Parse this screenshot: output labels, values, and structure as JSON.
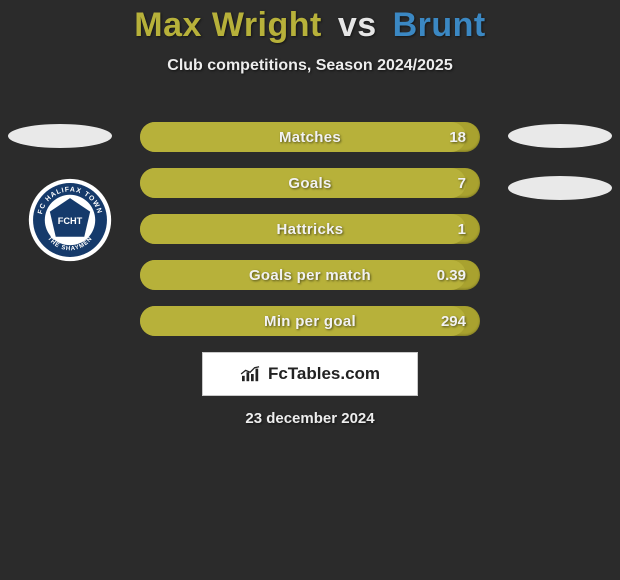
{
  "colors": {
    "page_bg": "#2b2b2b",
    "title_p1": "#b7b13a",
    "title_vs": "#e6e6e6",
    "title_p2": "#3b88c3",
    "subtitle": "#ededed",
    "ellipse": "#e9e9e9",
    "row_bg": "#a9a22f",
    "row_fill": "#b7b13a",
    "row_text": "#f2f2f2",
    "brand_bg": "#ffffff",
    "brand_text": "#222222",
    "date_text": "#ededed",
    "badge_outer": "#ffffff",
    "badge_ring": "#153a6b",
    "badge_inner": "#ffffff",
    "badge_center": "#153a6b"
  },
  "title": {
    "p1": "Max Wright",
    "vs": "vs",
    "p2": "Brunt"
  },
  "subtitle": "Club competitions, Season 2024/2025",
  "stats": {
    "rows": [
      {
        "label": "Matches",
        "right_value": "18",
        "fill_pct": 96
      },
      {
        "label": "Goals",
        "right_value": "7",
        "fill_pct": 96
      },
      {
        "label": "Hattricks",
        "right_value": "1",
        "fill_pct": 96
      },
      {
        "label": "Goals per match",
        "right_value": "0.39",
        "fill_pct": 96
      },
      {
        "label": "Min per goal",
        "right_value": "294",
        "fill_pct": 96
      }
    ]
  },
  "badge": {
    "top_text": "FC HALIFAX TOWN",
    "bottom_text": "THE SHAYMEN",
    "mono": "FCHT"
  },
  "brand": {
    "text": "FcTables.com"
  },
  "date": "23 december 2024"
}
